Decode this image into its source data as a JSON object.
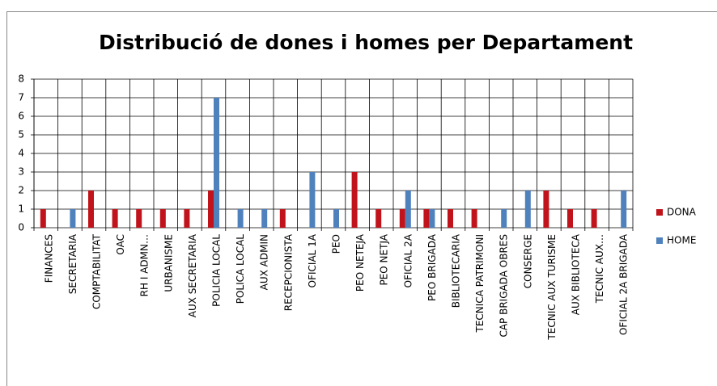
{
  "chart_data": {
    "type": "bar",
    "title": "Distribució de dones i homes per Departament",
    "categories": [
      "FINANCES",
      "SECRETARIA",
      "COMPTABILITAT",
      "OAC",
      "RH I ADMN…",
      "URBANISME",
      "AUX SECRETARIA",
      "POLICIA LOCAL",
      "POLICA LOCAL",
      "AUX ADMIN",
      "RECEPCIONISTA",
      "OFICIAL 1A",
      "PEO",
      "PEO NETEJA",
      "PEO NETJA",
      "OFICIAL 2A",
      "PEO BRIGADA",
      "BIBLIOTECARIA",
      "TECNICA PATRIMONI",
      "CAP BRIGADA OBRES",
      "CONSERGE",
      "TECNIC AUX TURISME",
      "AUX BIBLIOTECA",
      "TECNIC AUX…",
      "OFICIAL 2A BRIGADA"
    ],
    "series": [
      {
        "name": "DONA",
        "color": "#c0131b",
        "values": [
          1,
          0,
          2,
          1,
          1,
          1,
          1,
          2,
          0,
          0,
          1,
          0,
          0,
          3,
          1,
          1,
          1,
          1,
          1,
          0,
          0,
          2,
          1,
          1,
          0
        ]
      },
      {
        "name": "HOME",
        "color": "#4f81bd",
        "values": [
          0,
          1,
          0,
          0,
          0,
          0,
          0,
          7,
          1,
          1,
          0,
          3,
          1,
          0,
          0,
          2,
          1,
          0,
          0,
          1,
          2,
          0,
          0,
          0,
          2
        ]
      }
    ],
    "ylim": [
      0,
      8
    ],
    "yticks": [
      0,
      1,
      2,
      3,
      4,
      5,
      6,
      7,
      8
    ],
    "grid": true,
    "legend": "right"
  }
}
